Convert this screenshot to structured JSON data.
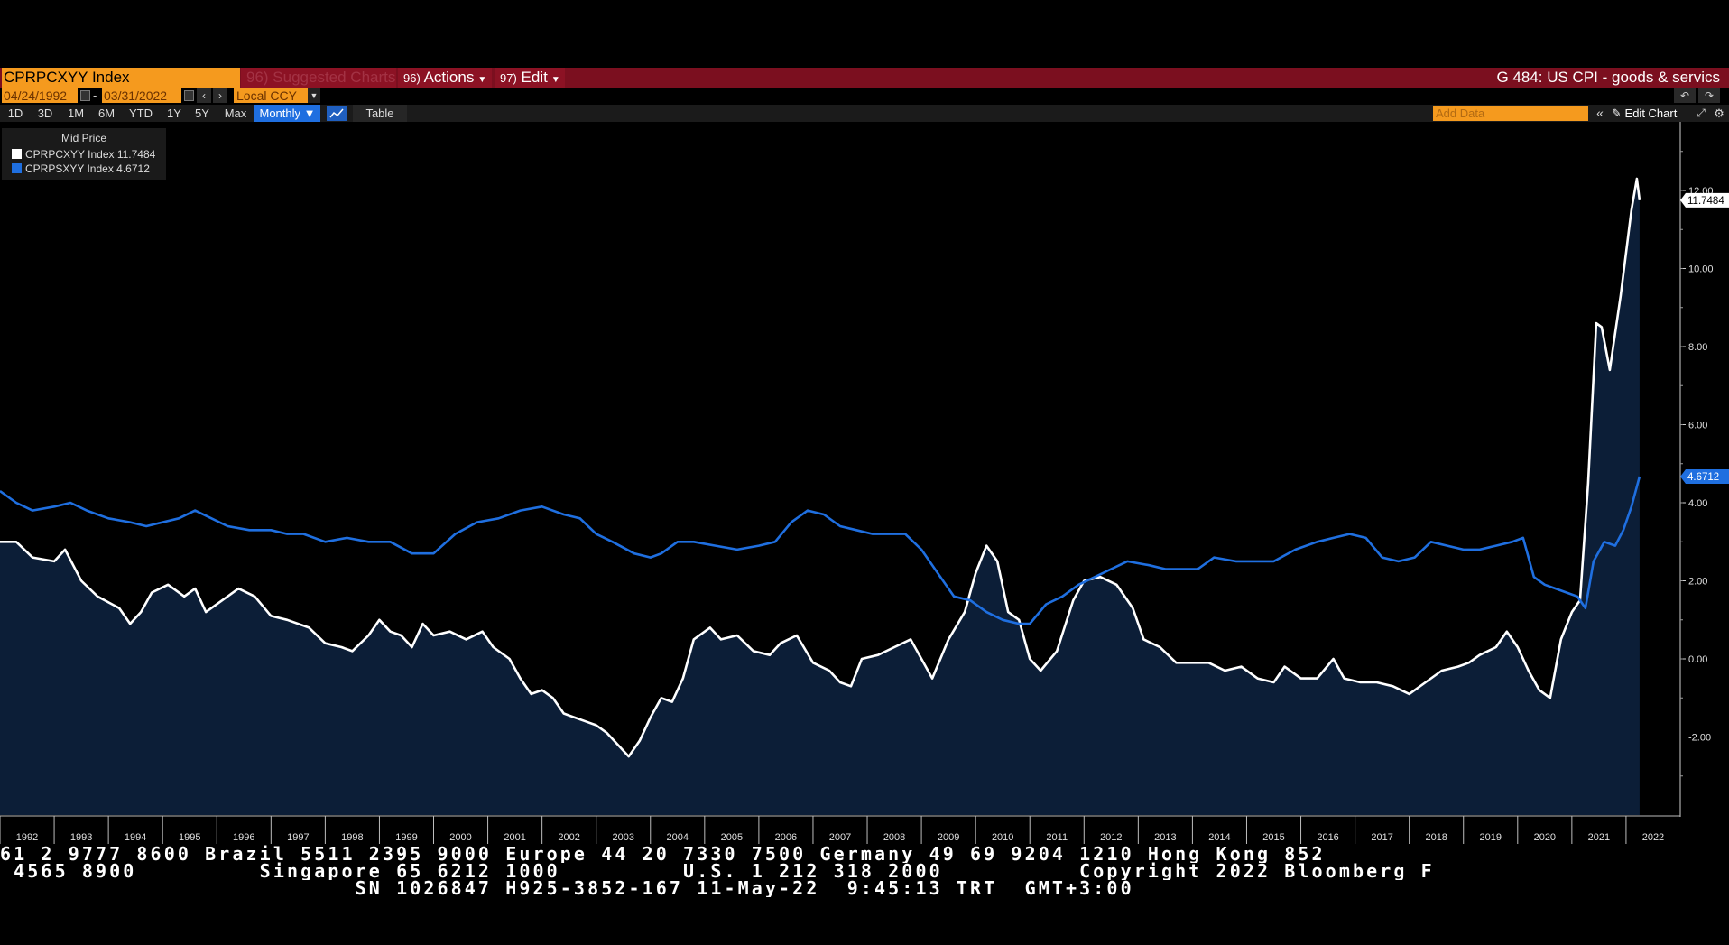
{
  "toolbar": {
    "ticker": "CPRPCXYY Index",
    "suggested": "96) Suggested Charts",
    "actions_num": "96)",
    "actions": "Actions",
    "edit_num": "97)",
    "edit": "Edit",
    "chart_title": "G 484: US CPI - goods & servics"
  },
  "range": {
    "start": "04/24/1992",
    "end": "03/31/2022",
    "currency": "Local CCY"
  },
  "timeframes": [
    "1D",
    "3D",
    "1M",
    "6M",
    "YTD",
    "1Y",
    "5Y",
    "Max"
  ],
  "frequency": "Monthly ▼",
  "table_label": "Table",
  "add_data_placeholder": "Add Data",
  "edit_chart": "Edit Chart",
  "legend": {
    "title": "Mid Price",
    "items": [
      {
        "label": "CPRPCXYY Index 11.7484",
        "color": "#ffffff"
      },
      {
        "label": "CPRPSXYY Index 4.6712",
        "color": "#1f6fe0"
      }
    ]
  },
  "badges": {
    "white": "11.7484",
    "blue": "4.6712"
  },
  "footer": {
    "line1": "61 2 9777 8600 Brazil 5511 2395 9000 Europe 44 20 7330 7500 Germany 49 69 9204 1210 Hong Kong 852",
    "line2": " 4565 8900         Singapore 65 6212 1000         U.S. 1 212 318 2000          Copyright 2022 Bloomberg F",
    "line3": "                          SN 1026847 H925-3852-167 11-May-22  9:45:13 TRT  GMT+3:00"
  },
  "chart_data": {
    "type": "line",
    "x_start": 1992.0,
    "x_end": 2022.25,
    "xlim": [
      1992.0,
      2023.2
    ],
    "ylim": [
      -4.0,
      13.5
    ],
    "yticks": [
      -2,
      0,
      2,
      4,
      6,
      8,
      10,
      12
    ],
    "ytick_labels": [
      "-2.00",
      "0.00",
      "2.00",
      "4.00",
      "6.00",
      "8.00",
      "10.00",
      "12.00"
    ],
    "xtick_labels": [
      "1992",
      "1993",
      "1994",
      "1995",
      "1996",
      "1997",
      "1998",
      "1999",
      "2000",
      "2001",
      "2002",
      "2003",
      "2004",
      "2005",
      "2006",
      "2007",
      "2008",
      "2009",
      "2010",
      "2011",
      "2012",
      "2013",
      "2014",
      "2015",
      "2016",
      "2017",
      "2018",
      "2019",
      "2020",
      "2021",
      "2022"
    ],
    "grid": false,
    "legend_position": "top-left",
    "series": [
      {
        "name": "CPRPCXYY Index",
        "color": "#ffffff",
        "fill": "#0c1e37",
        "last": 11.7484,
        "points": [
          [
            1992.0,
            3.0
          ],
          [
            1992.3,
            3.0
          ],
          [
            1992.6,
            2.6
          ],
          [
            1993.0,
            2.5
          ],
          [
            1993.2,
            2.8
          ],
          [
            1993.5,
            2.0
          ],
          [
            1993.8,
            1.6
          ],
          [
            1994.2,
            1.3
          ],
          [
            1994.4,
            0.9
          ],
          [
            1994.6,
            1.2
          ],
          [
            1994.8,
            1.7
          ],
          [
            1995.1,
            1.9
          ],
          [
            1995.4,
            1.6
          ],
          [
            1995.6,
            1.8
          ],
          [
            1995.8,
            1.2
          ],
          [
            1996.1,
            1.5
          ],
          [
            1996.4,
            1.8
          ],
          [
            1996.7,
            1.6
          ],
          [
            1997.0,
            1.1
          ],
          [
            1997.3,
            1.0
          ],
          [
            1997.7,
            0.8
          ],
          [
            1998.0,
            0.4
          ],
          [
            1998.3,
            0.3
          ],
          [
            1998.5,
            0.2
          ],
          [
            1998.8,
            0.6
          ],
          [
            1999.0,
            1.0
          ],
          [
            1999.2,
            0.7
          ],
          [
            1999.4,
            0.6
          ],
          [
            1999.6,
            0.3
          ],
          [
            1999.8,
            0.9
          ],
          [
            2000.0,
            0.6
          ],
          [
            2000.3,
            0.7
          ],
          [
            2000.6,
            0.5
          ],
          [
            2000.9,
            0.7
          ],
          [
            2001.1,
            0.3
          ],
          [
            2001.4,
            0.0
          ],
          [
            2001.6,
            -0.5
          ],
          [
            2001.8,
            -0.9
          ],
          [
            2002.0,
            -0.8
          ],
          [
            2002.2,
            -1.0
          ],
          [
            2002.4,
            -1.4
          ],
          [
            2002.6,
            -1.5
          ],
          [
            2002.8,
            -1.6
          ],
          [
            2003.0,
            -1.7
          ],
          [
            2003.2,
            -1.9
          ],
          [
            2003.4,
            -2.2
          ],
          [
            2003.6,
            -2.5
          ],
          [
            2003.8,
            -2.1
          ],
          [
            2004.0,
            -1.5
          ],
          [
            2004.2,
            -1.0
          ],
          [
            2004.4,
            -1.1
          ],
          [
            2004.6,
            -0.5
          ],
          [
            2004.8,
            0.5
          ],
          [
            2005.1,
            0.8
          ],
          [
            2005.3,
            0.5
          ],
          [
            2005.6,
            0.6
          ],
          [
            2005.9,
            0.2
          ],
          [
            2006.2,
            0.1
          ],
          [
            2006.4,
            0.4
          ],
          [
            2006.7,
            0.6
          ],
          [
            2007.0,
            -0.1
          ],
          [
            2007.3,
            -0.3
          ],
          [
            2007.5,
            -0.6
          ],
          [
            2007.7,
            -0.7
          ],
          [
            2007.9,
            0.0
          ],
          [
            2008.2,
            0.1
          ],
          [
            2008.5,
            0.3
          ],
          [
            2008.8,
            0.5
          ],
          [
            2009.0,
            0.0
          ],
          [
            2009.2,
            -0.5
          ],
          [
            2009.5,
            0.5
          ],
          [
            2009.8,
            1.2
          ],
          [
            2010.0,
            2.2
          ],
          [
            2010.2,
            2.9
          ],
          [
            2010.4,
            2.5
          ],
          [
            2010.6,
            1.2
          ],
          [
            2010.8,
            1.0
          ],
          [
            2011.0,
            0.0
          ],
          [
            2011.2,
            -0.3
          ],
          [
            2011.5,
            0.2
          ],
          [
            2011.8,
            1.5
          ],
          [
            2012.0,
            2.0
          ],
          [
            2012.3,
            2.1
          ],
          [
            2012.6,
            1.9
          ],
          [
            2012.9,
            1.3
          ],
          [
            2013.1,
            0.5
          ],
          [
            2013.4,
            0.3
          ],
          [
            2013.7,
            -0.1
          ],
          [
            2014.0,
            -0.1
          ],
          [
            2014.3,
            -0.1
          ],
          [
            2014.6,
            -0.3
          ],
          [
            2014.9,
            -0.2
          ],
          [
            2015.2,
            -0.5
          ],
          [
            2015.5,
            -0.6
          ],
          [
            2015.7,
            -0.2
          ],
          [
            2016.0,
            -0.5
          ],
          [
            2016.3,
            -0.5
          ],
          [
            2016.6,
            0.0
          ],
          [
            2016.8,
            -0.5
          ],
          [
            2017.1,
            -0.6
          ],
          [
            2017.4,
            -0.6
          ],
          [
            2017.7,
            -0.7
          ],
          [
            2018.0,
            -0.9
          ],
          [
            2018.3,
            -0.6
          ],
          [
            2018.6,
            -0.3
          ],
          [
            2018.9,
            -0.2
          ],
          [
            2019.1,
            -0.1
          ],
          [
            2019.3,
            0.1
          ],
          [
            2019.6,
            0.3
          ],
          [
            2019.8,
            0.7
          ],
          [
            2020.0,
            0.3
          ],
          [
            2020.2,
            -0.3
          ],
          [
            2020.4,
            -0.8
          ],
          [
            2020.6,
            -1.0
          ],
          [
            2020.8,
            0.5
          ],
          [
            2021.0,
            1.2
          ],
          [
            2021.15,
            1.5
          ],
          [
            2021.3,
            4.5
          ],
          [
            2021.45,
            8.6
          ],
          [
            2021.55,
            8.5
          ],
          [
            2021.7,
            7.4
          ],
          [
            2021.9,
            9.3
          ],
          [
            2022.1,
            11.5
          ],
          [
            2022.2,
            12.3
          ],
          [
            2022.25,
            11.75
          ]
        ]
      },
      {
        "name": "CPRPSXYY Index",
        "color": "#1f6fe0",
        "last": 4.6712,
        "points": [
          [
            1992.0,
            4.3
          ],
          [
            1992.3,
            4.0
          ],
          [
            1992.6,
            3.8
          ],
          [
            1993.0,
            3.9
          ],
          [
            1993.3,
            4.0
          ],
          [
            1993.6,
            3.8
          ],
          [
            1994.0,
            3.6
          ],
          [
            1994.4,
            3.5
          ],
          [
            1994.7,
            3.4
          ],
          [
            1995.0,
            3.5
          ],
          [
            1995.3,
            3.6
          ],
          [
            1995.6,
            3.8
          ],
          [
            1995.9,
            3.6
          ],
          [
            1996.2,
            3.4
          ],
          [
            1996.6,
            3.3
          ],
          [
            1997.0,
            3.3
          ],
          [
            1997.3,
            3.2
          ],
          [
            1997.6,
            3.2
          ],
          [
            1998.0,
            3.0
          ],
          [
            1998.4,
            3.1
          ],
          [
            1998.8,
            3.0
          ],
          [
            1999.2,
            3.0
          ],
          [
            1999.6,
            2.7
          ],
          [
            2000.0,
            2.7
          ],
          [
            2000.4,
            3.2
          ],
          [
            2000.8,
            3.5
          ],
          [
            2001.2,
            3.6
          ],
          [
            2001.6,
            3.8
          ],
          [
            2002.0,
            3.9
          ],
          [
            2002.4,
            3.7
          ],
          [
            2002.7,
            3.6
          ],
          [
            2003.0,
            3.2
          ],
          [
            2003.3,
            3.0
          ],
          [
            2003.7,
            2.7
          ],
          [
            2004.0,
            2.6
          ],
          [
            2004.2,
            2.7
          ],
          [
            2004.5,
            3.0
          ],
          [
            2004.8,
            3.0
          ],
          [
            2005.2,
            2.9
          ],
          [
            2005.6,
            2.8
          ],
          [
            2006.0,
            2.9
          ],
          [
            2006.3,
            3.0
          ],
          [
            2006.6,
            3.5
          ],
          [
            2006.9,
            3.8
          ],
          [
            2007.2,
            3.7
          ],
          [
            2007.5,
            3.4
          ],
          [
            2007.8,
            3.3
          ],
          [
            2008.1,
            3.2
          ],
          [
            2008.4,
            3.2
          ],
          [
            2008.7,
            3.2
          ],
          [
            2009.0,
            2.8
          ],
          [
            2009.3,
            2.2
          ],
          [
            2009.6,
            1.6
          ],
          [
            2009.9,
            1.5
          ],
          [
            2010.2,
            1.2
          ],
          [
            2010.5,
            1.0
          ],
          [
            2010.8,
            0.9
          ],
          [
            2011.0,
            0.9
          ],
          [
            2011.3,
            1.4
          ],
          [
            2011.6,
            1.6
          ],
          [
            2011.9,
            1.9
          ],
          [
            2012.2,
            2.1
          ],
          [
            2012.5,
            2.3
          ],
          [
            2012.8,
            2.5
          ],
          [
            2013.2,
            2.4
          ],
          [
            2013.5,
            2.3
          ],
          [
            2013.8,
            2.3
          ],
          [
            2014.1,
            2.3
          ],
          [
            2014.4,
            2.6
          ],
          [
            2014.8,
            2.5
          ],
          [
            2015.1,
            2.5
          ],
          [
            2015.5,
            2.5
          ],
          [
            2015.9,
            2.8
          ],
          [
            2016.3,
            3.0
          ],
          [
            2016.6,
            3.1
          ],
          [
            2016.9,
            3.2
          ],
          [
            2017.2,
            3.1
          ],
          [
            2017.5,
            2.6
          ],
          [
            2017.8,
            2.5
          ],
          [
            2018.1,
            2.6
          ],
          [
            2018.4,
            3.0
          ],
          [
            2018.7,
            2.9
          ],
          [
            2019.0,
            2.8
          ],
          [
            2019.3,
            2.8
          ],
          [
            2019.6,
            2.9
          ],
          [
            2019.9,
            3.0
          ],
          [
            2020.1,
            3.1
          ],
          [
            2020.3,
            2.1
          ],
          [
            2020.5,
            1.9
          ],
          [
            2020.7,
            1.8
          ],
          [
            2020.9,
            1.7
          ],
          [
            2021.1,
            1.6
          ],
          [
            2021.25,
            1.3
          ],
          [
            2021.4,
            2.5
          ],
          [
            2021.6,
            3.0
          ],
          [
            2021.8,
            2.9
          ],
          [
            2021.95,
            3.3
          ],
          [
            2022.1,
            3.9
          ],
          [
            2022.25,
            4.67
          ]
        ]
      }
    ]
  }
}
